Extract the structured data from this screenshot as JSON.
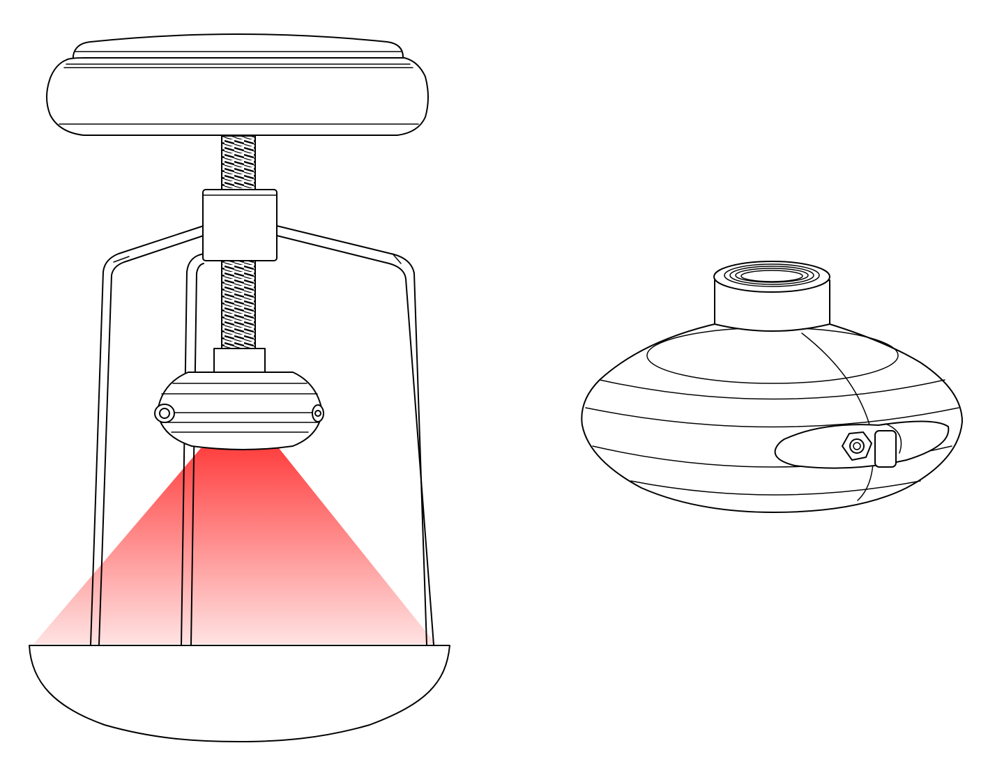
{
  "figure": {
    "colors": {
      "line": "#000000",
      "background": "#ffffff",
      "beam_top": "#ff4040",
      "beam_bottom": "#ffffff"
    },
    "left_view": {
      "parts": [
        "top-knob",
        "threaded-rod",
        "collar",
        "support-legs",
        "sensor-head",
        "beam-cone",
        "base-dish"
      ],
      "beam_opacity_top": 1.0,
      "beam_opacity_bottom": 0.15
    },
    "right_view": {
      "parts": [
        "threaded-neck",
        "domed-housing",
        "slot-window",
        "bolt-nut"
      ]
    }
  }
}
